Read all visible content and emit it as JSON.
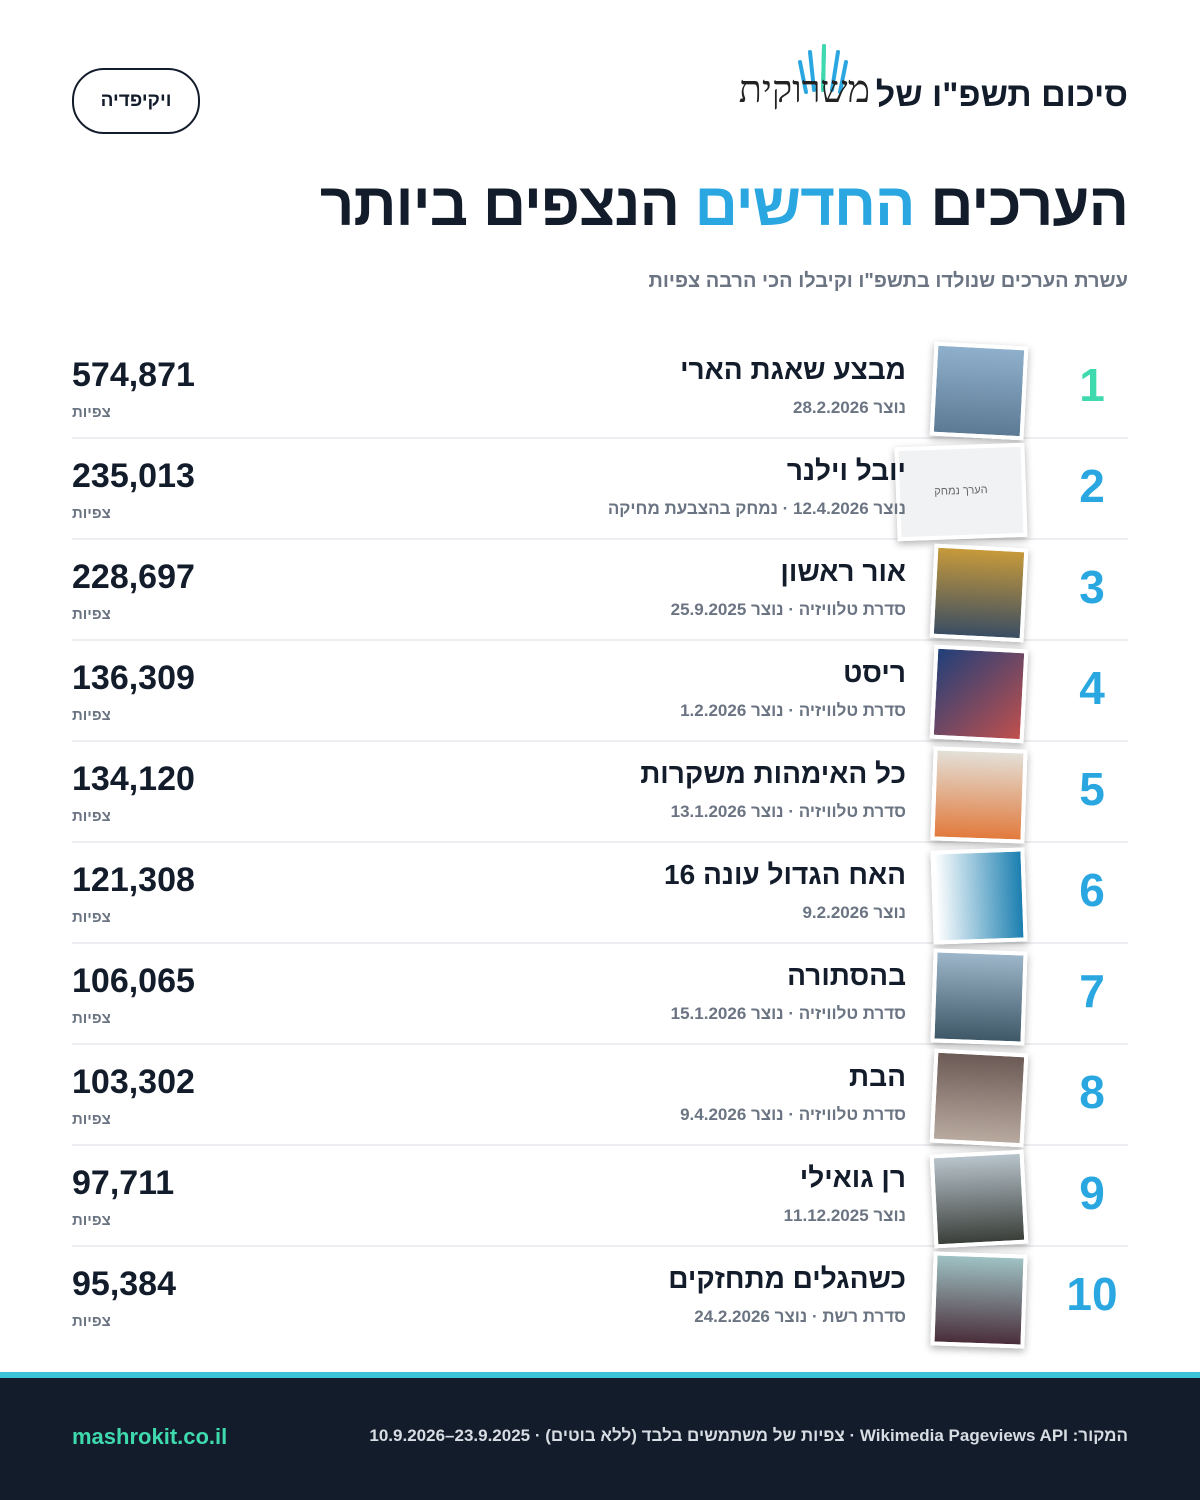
{
  "header": {
    "title": "סיכום תשפ\"ו של",
    "logo": "משרוקית",
    "button": "ויקיפדיה"
  },
  "title": {
    "parts": [
      "הערכים",
      "החדשים",
      "הנצפים ביותר"
    ]
  },
  "subtitle": "עשרת הערכים שנולדו בתשפ\"ו וקיבלו הכי הרבה צפיות",
  "items": [
    {
      "rank": 1,
      "name": "מבצע שאגת הארי",
      "meta": "נוצר 28.2.2026",
      "views": "574,871",
      "views_label": "צפיות"
    },
    {
      "rank": 2,
      "name": "יובל וילנר",
      "meta": "נוצר 12.4.2026 · נמחק בהצבעת מחיקה",
      "views": "235,013",
      "views_label": "צפיות",
      "thumb_text": "הערך נמחק"
    },
    {
      "rank": 3,
      "name": "אור ראשון",
      "meta": "סדרת טלוויזיה · נוצר 25.9.2025",
      "views": "228,697",
      "views_label": "צפיות"
    },
    {
      "rank": 4,
      "name": "ריסט",
      "meta": "סדרת טלוויזיה · נוצר 1.2.2026",
      "views": "136,309",
      "views_label": "צפיות"
    },
    {
      "rank": 5,
      "name": "כל האימהות משקרות",
      "meta": "סדרת טלוויזיה · נוצר 13.1.2026",
      "views": "134,120",
      "views_label": "צפיות"
    },
    {
      "rank": 6,
      "name": "האח הגדול עונה 16",
      "meta": "נוצר 9.2.2026",
      "views": "121,308",
      "views_label": "צפיות"
    },
    {
      "rank": 7,
      "name": "בהסתורה",
      "meta": "סדרת טלוויזיה · נוצר 15.1.2026",
      "views": "106,065",
      "views_label": "צפיות"
    },
    {
      "rank": 8,
      "name": "הבת",
      "meta": "סדרת טלוויזיה · נוצר 9.4.2026",
      "views": "103,302",
      "views_label": "צפיות"
    },
    {
      "rank": 9,
      "name": "רן גואילי",
      "meta": "נוצר 11.12.2025",
      "views": "97,711",
      "views_label": "צפיות"
    },
    {
      "rank": 10,
      "name": "כשהגלים מתחזקים",
      "meta": "סדרת רשת · נוצר 24.2.2026",
      "views": "95,384",
      "views_label": "צפיות"
    }
  ],
  "footer": {
    "source": "המקור: Wikimedia Pageviews API · צפיות של משתמשים בלבד (ללא בוטים) · 23.9.2025–10.9.2026",
    "site": "mashrokit.co.il"
  }
}
